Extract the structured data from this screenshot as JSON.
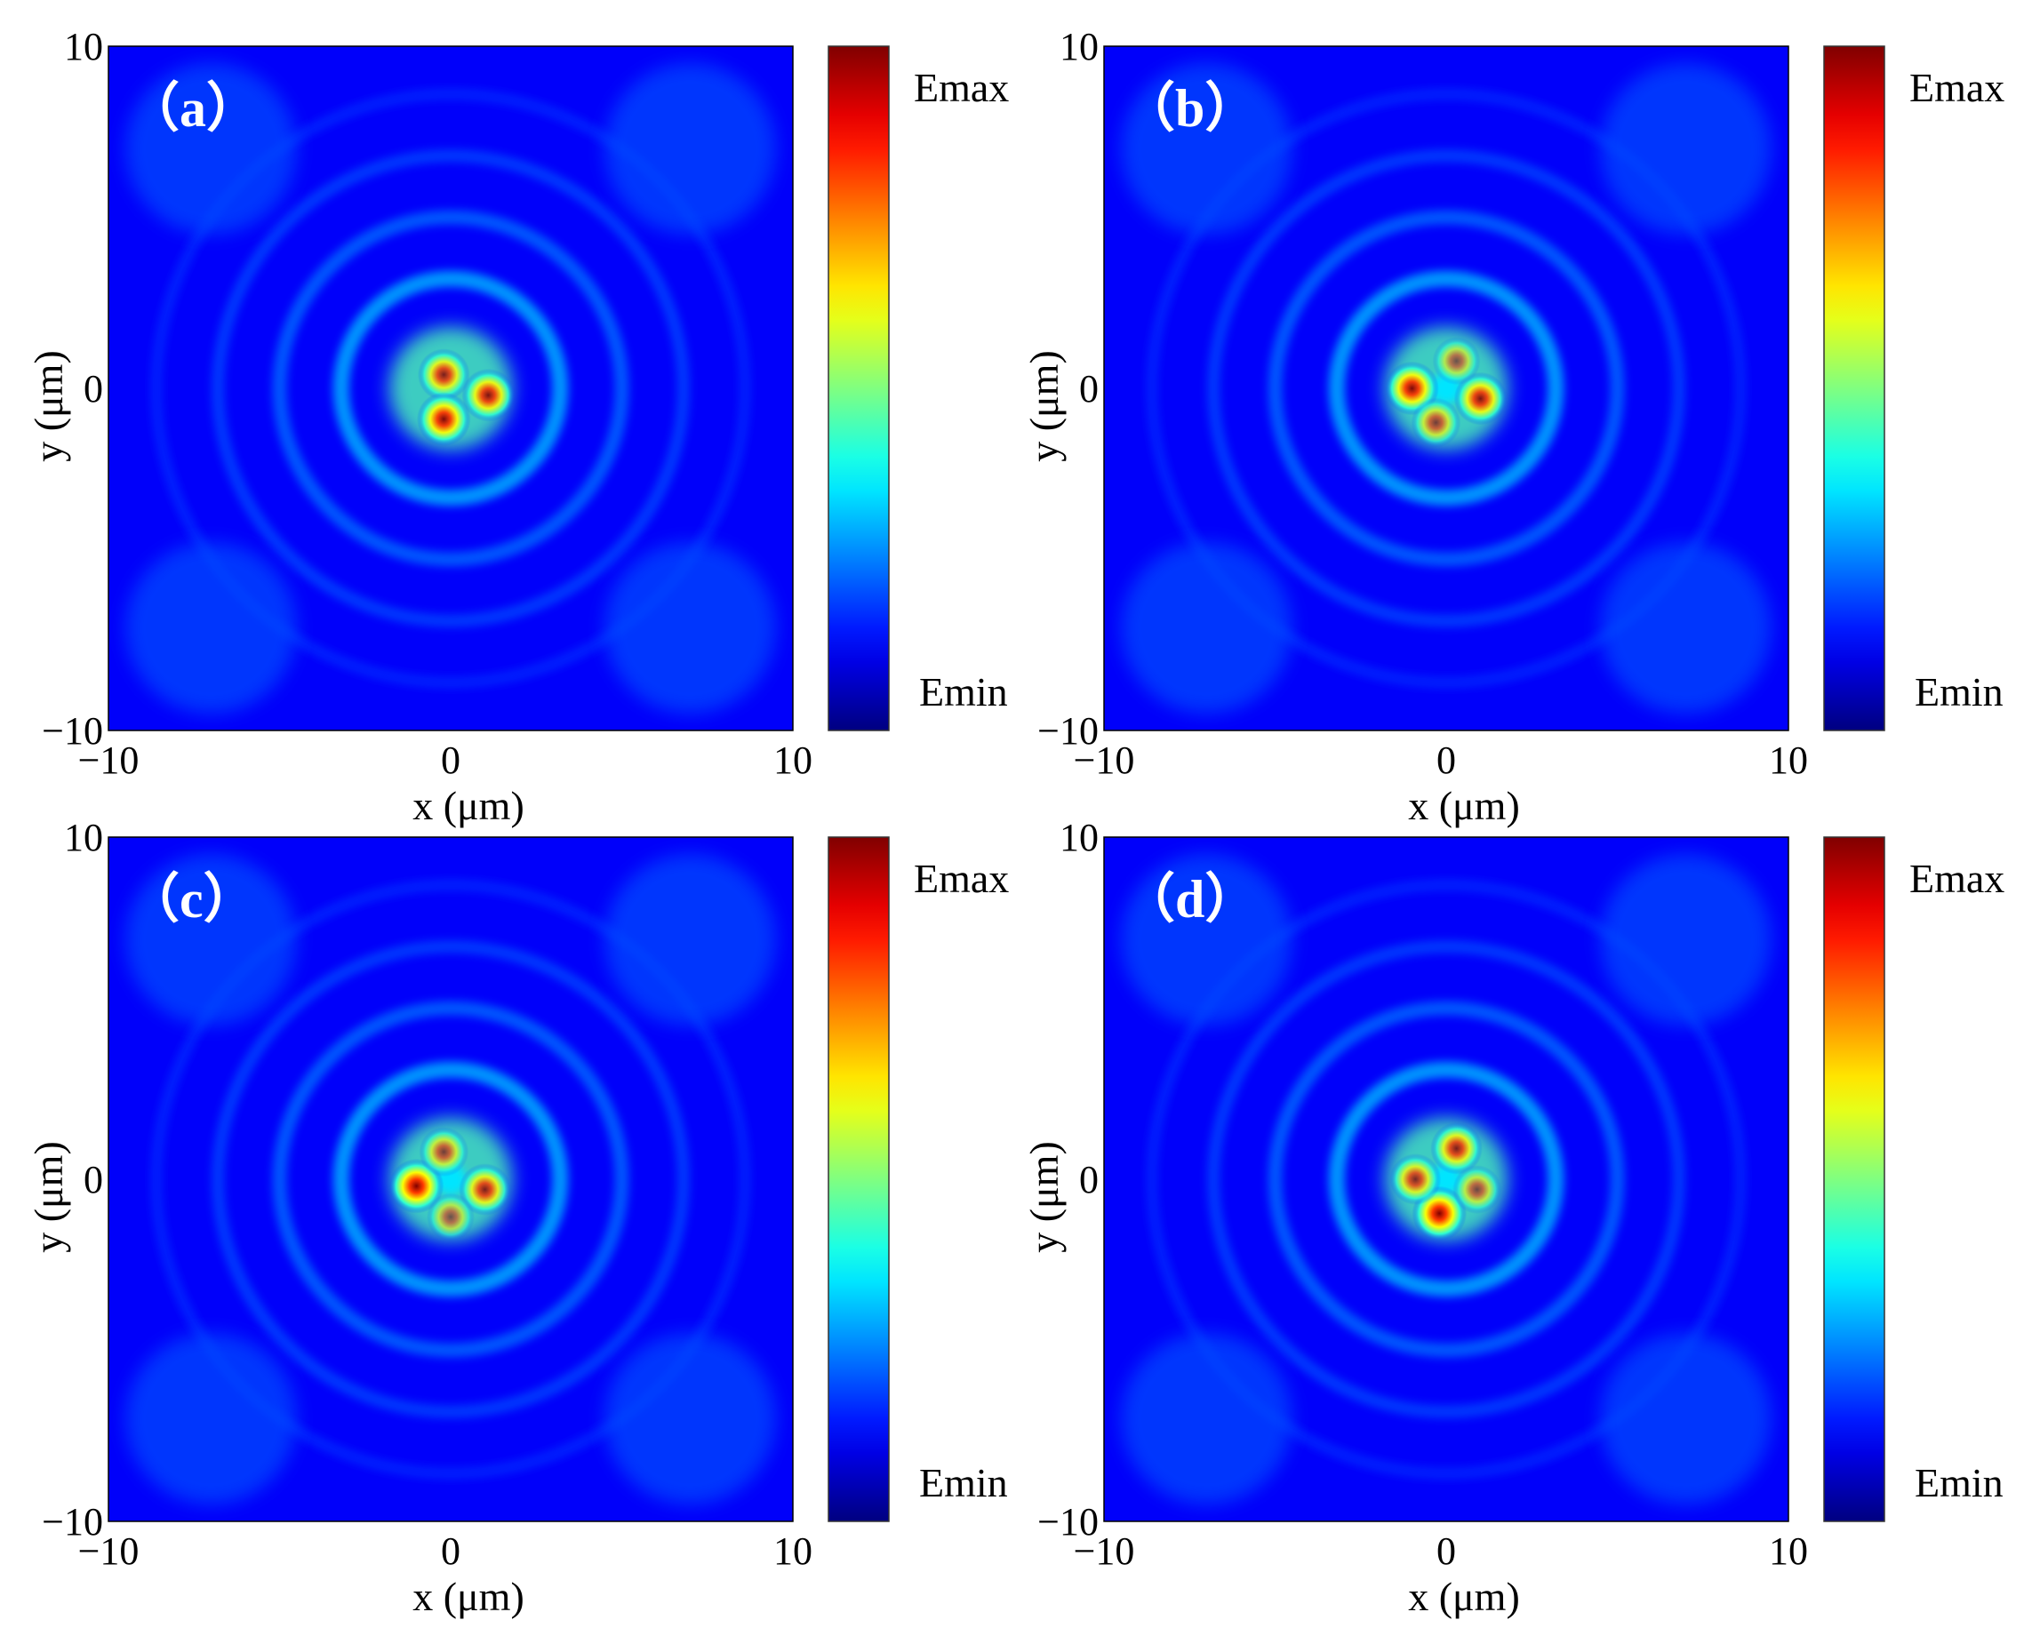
{
  "chart_data": [
    {
      "type": "heatmap",
      "panel_label": "（a）",
      "xlabel": "x (μm)",
      "ylabel": "y (μm)",
      "xlim": [
        -10,
        10
      ],
      "ylim": [
        -10,
        10
      ],
      "x_ticks": [
        "−10",
        "0",
        "10"
      ],
      "y_ticks": [
        "10",
        "0",
        "−10"
      ],
      "colorbar": {
        "max_label": "Emax",
        "min_label": "Emin",
        "colormap": "jet"
      },
      "pattern": "three bright lobes near the origin inside faint concentric rings",
      "hotspots": [
        {
          "x": -0.2,
          "y": 0.4,
          "intensity": 0.85
        },
        {
          "x": 1.1,
          "y": -0.2,
          "intensity": 0.9
        },
        {
          "x": -0.2,
          "y": -0.9,
          "intensity": 0.95
        }
      ]
    },
    {
      "type": "heatmap",
      "panel_label": "（b）",
      "xlabel": "x (μm)",
      "ylabel": "y (μm)",
      "xlim": [
        -10,
        10
      ],
      "ylim": [
        -10,
        10
      ],
      "x_ticks": [
        "−10",
        "0",
        "10"
      ],
      "y_ticks": [
        "10",
        "0",
        "−10"
      ],
      "colorbar": {
        "max_label": "Emax",
        "min_label": "Emin",
        "colormap": "jet"
      },
      "pattern": "ring of lobes around a dim center with surrounding fringes",
      "hotspots": [
        {
          "x": -1.0,
          "y": 0.0,
          "intensity": 0.95
        },
        {
          "x": 1.0,
          "y": -0.3,
          "intensity": 0.9
        },
        {
          "x": -0.3,
          "y": -1.0,
          "intensity": 0.7
        },
        {
          "x": 0.3,
          "y": 0.8,
          "intensity": 0.6
        }
      ]
    },
    {
      "type": "heatmap",
      "panel_label": "（c）",
      "xlabel": "x (μm)",
      "ylabel": "y (μm)",
      "xlim": [
        -10,
        10
      ],
      "ylim": [
        -10,
        10
      ],
      "x_ticks": [
        "−10",
        "0",
        "10"
      ],
      "y_ticks": [
        "10",
        "0",
        "−10"
      ],
      "colorbar": {
        "max_label": "Emax",
        "min_label": "Emin",
        "colormap": "jet"
      },
      "pattern": "broken bright ring centered near the origin",
      "hotspots": [
        {
          "x": -1.0,
          "y": -0.2,
          "intensity": 1.0
        },
        {
          "x": 1.0,
          "y": -0.3,
          "intensity": 0.85
        },
        {
          "x": -0.2,
          "y": 0.8,
          "intensity": 0.7
        },
        {
          "x": 0.0,
          "y": -1.1,
          "intensity": 0.6
        }
      ]
    },
    {
      "type": "heatmap",
      "panel_label": "（d）",
      "xlabel": "x (μm)",
      "ylabel": "y (μm)",
      "xlim": [
        -10,
        10
      ],
      "ylim": [
        -10,
        10
      ],
      "x_ticks": [
        "−10",
        "0",
        "10"
      ],
      "y_ticks": [
        "10",
        "0",
        "−10"
      ],
      "colorbar": {
        "max_label": "Emax",
        "min_label": "Emin",
        "colormap": "jet"
      },
      "pattern": "closed doughnut-shaped ring with the strongest arc at the lower left",
      "hotspots": [
        {
          "x": -0.2,
          "y": -1.0,
          "intensity": 1.0
        },
        {
          "x": 0.3,
          "y": 0.9,
          "intensity": 0.85
        },
        {
          "x": -0.9,
          "y": 0.0,
          "intensity": 0.8
        },
        {
          "x": 0.9,
          "y": -0.3,
          "intensity": 0.65
        }
      ]
    }
  ]
}
